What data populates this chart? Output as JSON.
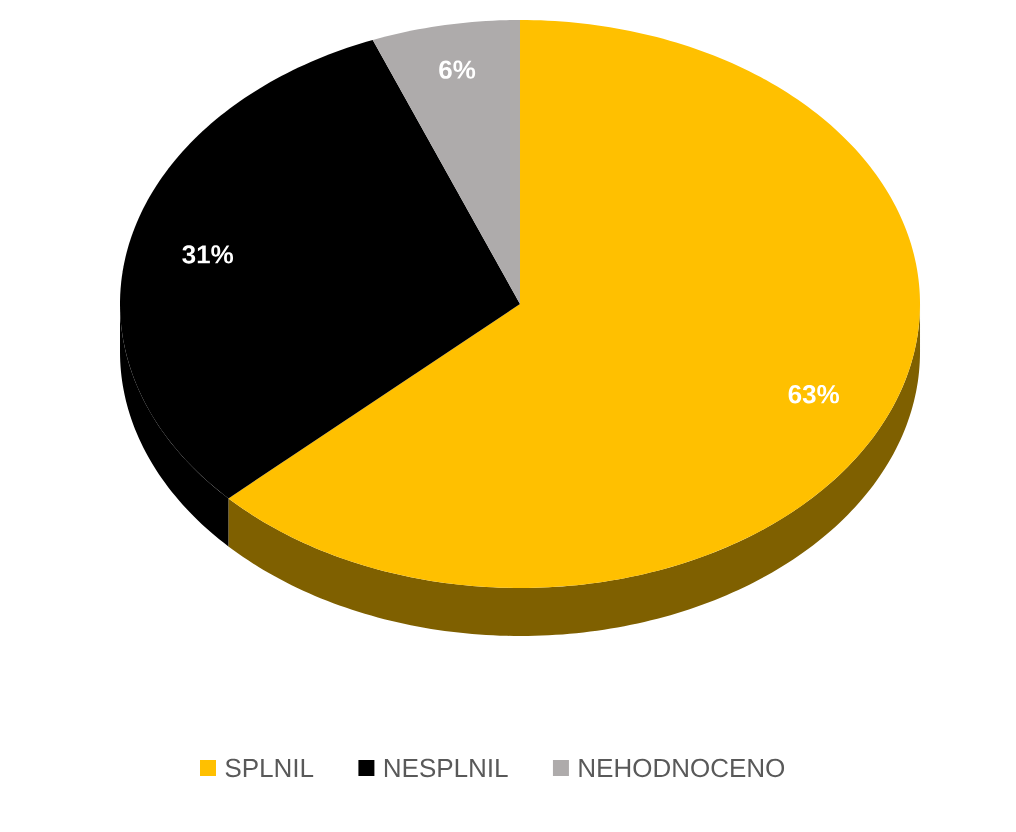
{
  "chart_data": {
    "type": "pie",
    "categories": [
      "SPLNIL",
      "NESPLNIL",
      "NEHODNOCENO"
    ],
    "values": [
      63,
      31,
      6
    ],
    "colors": [
      "#ffc000",
      "#000000",
      "#aeabab"
    ],
    "value_labels": [
      "63%",
      "31%",
      "6%"
    ],
    "legend": "bottom"
  }
}
